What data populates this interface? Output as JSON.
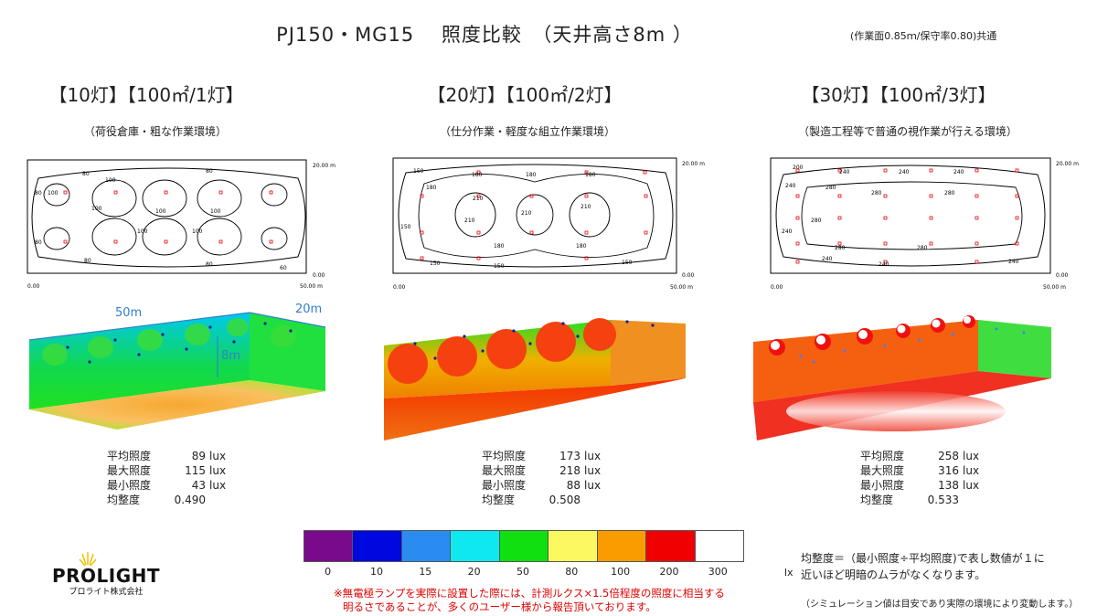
{
  "title": "PJ150・MG15　 照度比較　（天井高さ8m ）",
  "top_note": "(作業面0.85ｍ/保守率0.80)共通",
  "columns": [
    {
      "heading": "【10灯】【100㎡/1灯】",
      "subheading": "（荷役倉庫・粗な作業環境）",
      "stats": [
        {
          "label": "平均照度",
          "value": "89",
          "unit": "lux"
        },
        {
          "label": "最大照度",
          "value": "115",
          "unit": "lux"
        },
        {
          "label": "最小照度",
          "value": "43",
          "unit": "lux"
        },
        {
          "label": "均整度",
          "value": "0.490",
          "unit": ""
        }
      ],
      "contour_labels": [
        "80",
        "100",
        "60"
      ]
    },
    {
      "heading": "【20灯】【100㎡/2灯】",
      "subheading": "（仕分作業・軽度な組立作業環境）",
      "stats": [
        {
          "label": "平均照度",
          "value": "173",
          "unit": "lux"
        },
        {
          "label": "最大照度",
          "value": "218",
          "unit": "lux"
        },
        {
          "label": "最小照度",
          "value": "88",
          "unit": "lux"
        },
        {
          "label": "均整度",
          "value": "0.508",
          "unit": ""
        }
      ],
      "contour_labels": [
        "150",
        "180",
        "210"
      ]
    },
    {
      "heading": "【30灯】【100㎡/3灯】",
      "subheading": "（製造工程等で普通の視作業が行える環境）",
      "stats": [
        {
          "label": "平均照度",
          "value": "258",
          "unit": "lux"
        },
        {
          "label": "最大照度",
          "value": "316",
          "unit": "lux"
        },
        {
          "label": "最小照度",
          "value": "138",
          "unit": "lux"
        },
        {
          "label": "均整度",
          "value": "0.533",
          "unit": ""
        }
      ],
      "contour_labels": [
        "200",
        "240",
        "280"
      ]
    }
  ],
  "plan_axes": {
    "y_top": "20.00 m",
    "y_bottom": "0.00",
    "x_left": "0.00",
    "x_right": "50.00 m"
  },
  "dimensions": {
    "length": "50m",
    "width": "20m",
    "height": "8m"
  },
  "legend": {
    "labels": [
      "0",
      "10",
      "15",
      "20",
      "50",
      "80",
      "100",
      "200",
      "300"
    ],
    "colors": [
      "#7a0a8c",
      "#0008e0",
      "#2a8cf0",
      "#10e8f0",
      "#10e010",
      "#fafa60",
      "#fa9c00",
      "#f00000",
      "#ffffff"
    ],
    "unit": "lx"
  },
  "uniformity_note": [
    "均整度＝（最小照度÷平均照度)で表し数値が１に",
    "近いほど明暗のムラがなくなります。"
  ],
  "simulation_note": "（シミュレーション値は目安であり実際の環境により変動します。）",
  "red_note": [
    "※無電極ランプを実際に設置した際には、計測ルクス×1.5倍程度の照度に相当する",
    "明るさであることが、多くのユーザー様から報告頂いております。"
  ],
  "logo": {
    "name": "PROLIGHT",
    "sub": "プロライト株式会社"
  }
}
